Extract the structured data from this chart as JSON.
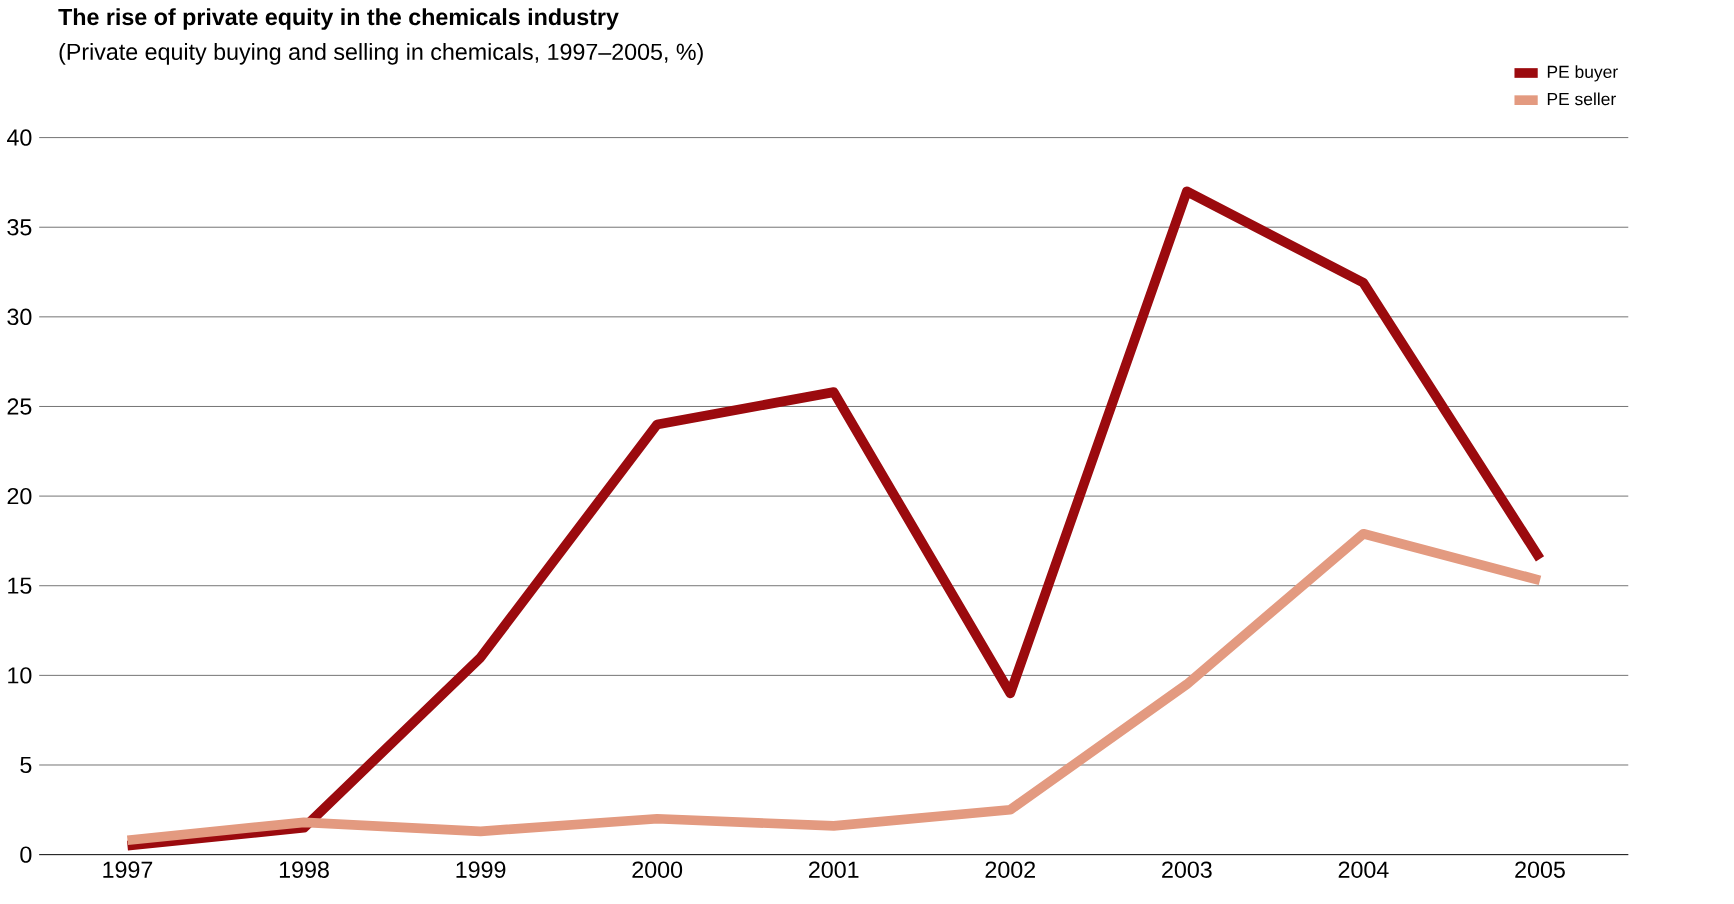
{
  "chart_data": {
    "type": "line",
    "title": "The rise of private equity in the chemicals industry",
    "subtitle": "(Private equity buying and selling in chemicals, 1997–2005, %)",
    "categories": [
      "1997",
      "1998",
      "1999",
      "2000",
      "2001",
      "2002",
      "2003",
      "2004",
      "2005"
    ],
    "series": [
      {
        "name": "PE buyer",
        "color": "#9b0a0e",
        "values": [
          0.5,
          1.5,
          11,
          24,
          25.8,
          9,
          37,
          31.9,
          16.5
        ]
      },
      {
        "name": "PE seller",
        "color": "#e39a80",
        "values": [
          0.8,
          1.8,
          1.3,
          2,
          1.6,
          2.5,
          9.5,
          17.9,
          15.3
        ]
      }
    ],
    "ylim": [
      0,
      40
    ],
    "yticks": [
      0,
      5,
      10,
      15,
      20,
      25,
      30,
      35,
      40
    ],
    "grid": "y",
    "legend": "top right",
    "marker": "none",
    "line_style": "solid"
  }
}
